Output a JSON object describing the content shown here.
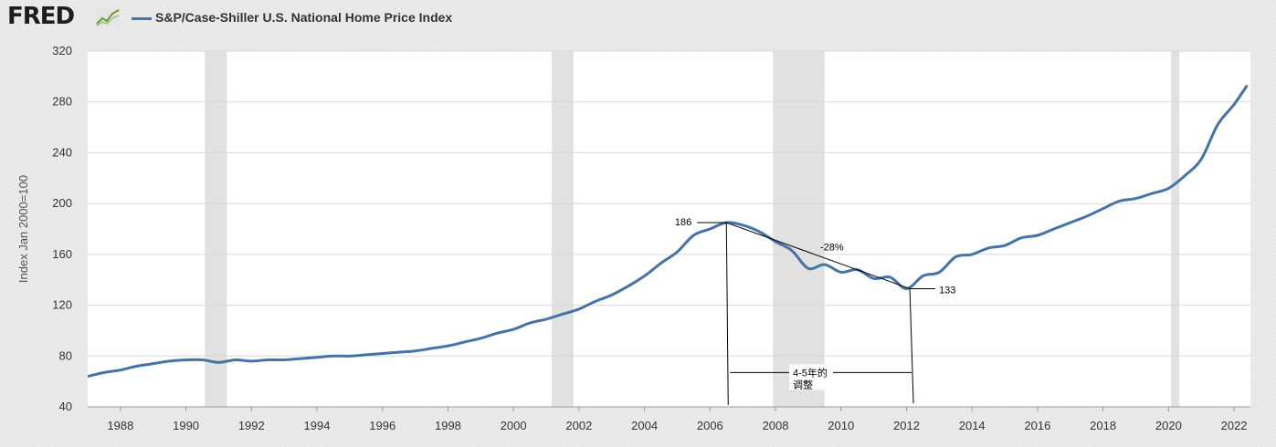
{
  "header": {
    "logo": "FRED",
    "logo_icon": "chart-line-icon",
    "series_title": "S&P/Case-Shiller U.S. National Home Price Index"
  },
  "chart_data": {
    "type": "line",
    "title": "S&P/Case-Shiller U.S. National Home Price Index",
    "ylabel": "Index Jan 2000=100",
    "xlabel": "",
    "xlim": [
      1987.0,
      2022.5
    ],
    "ylim": [
      40,
      320
    ],
    "yticks": [
      40,
      80,
      120,
      160,
      200,
      240,
      280,
      320
    ],
    "xticks": [
      1988,
      1990,
      1992,
      1994,
      1996,
      1998,
      2000,
      2002,
      2004,
      2006,
      2008,
      2010,
      2012,
      2014,
      2016,
      2018,
      2020,
      2022
    ],
    "grid": true,
    "line_color": "#4572a7",
    "recessions": [
      [
        1990.58,
        1991.25
      ],
      [
        2001.17,
        2001.83
      ],
      [
        2007.92,
        2009.5
      ],
      [
        2020.08,
        2020.33
      ]
    ],
    "series": [
      {
        "name": "S&P/Case-Shiller U.S. National Home Price Index",
        "x": [
          1987.0,
          1987.5,
          1988.0,
          1988.5,
          1989.0,
          1989.5,
          1990.0,
          1990.5,
          1991.0,
          1991.5,
          1992.0,
          1992.5,
          1993.0,
          1993.5,
          1994.0,
          1994.5,
          1995.0,
          1995.5,
          1996.0,
          1996.5,
          1997.0,
          1997.5,
          1998.0,
          1998.5,
          1999.0,
          1999.5,
          2000.0,
          2000.5,
          2001.0,
          2001.5,
          2002.0,
          2002.5,
          2003.0,
          2003.5,
          2004.0,
          2004.5,
          2005.0,
          2005.5,
          2006.0,
          2006.5,
          2007.0,
          2007.5,
          2008.0,
          2008.5,
          2009.0,
          2009.5,
          2010.0,
          2010.5,
          2011.0,
          2011.5,
          2012.0,
          2012.5,
          2013.0,
          2013.5,
          2014.0,
          2014.5,
          2015.0,
          2015.5,
          2016.0,
          2016.5,
          2017.0,
          2017.5,
          2018.0,
          2018.5,
          2019.0,
          2019.5,
          2020.0,
          2020.5,
          2021.0,
          2021.5,
          2022.0,
          2022.4
        ],
        "y": [
          64,
          67,
          69,
          72,
          74,
          76,
          77,
          77,
          75,
          77,
          76,
          77,
          77,
          78,
          79,
          80,
          80,
          81,
          82,
          83,
          84,
          86,
          88,
          91,
          94,
          98,
          101,
          106,
          109,
          113,
          117,
          123,
          128,
          135,
          143,
          153,
          162,
          175,
          180,
          185,
          183,
          178,
          170,
          163,
          149,
          152,
          146,
          148,
          141,
          142,
          133,
          143,
          146,
          158,
          160,
          165,
          167,
          173,
          175,
          180,
          185,
          190,
          196,
          202,
          204,
          208,
          212,
          222,
          235,
          262,
          278,
          293
        ]
      }
    ],
    "annotations": {
      "peak_label": "186",
      "trough_label": "133",
      "change_label": "-28%",
      "duration_label_line1": "4-5年的",
      "duration_label_line2": "调整"
    }
  }
}
